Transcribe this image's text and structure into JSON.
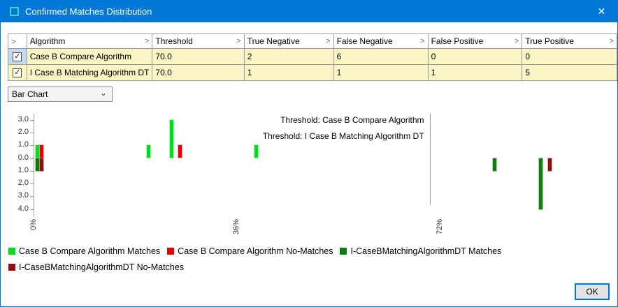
{
  "window": {
    "title": "Confirmed Matches Distribution",
    "close_glyph": "✕"
  },
  "table": {
    "header_chevron": ">",
    "headers": [
      "Algorithm",
      "Threshold",
      "True Negative",
      "False Negative",
      "False Positive",
      "True Positive"
    ],
    "rows": [
      {
        "checked": true,
        "selected": true,
        "check_glyph": "✓",
        "cells": [
          "Case B Compare Algorithm",
          "70.0",
          "2",
          "6",
          "0",
          "0"
        ]
      },
      {
        "checked": true,
        "selected": false,
        "check_glyph": "✓",
        "cells": [
          "I Case B Matching Algorithm DT",
          "70.0",
          "1",
          "1",
          "1",
          "5"
        ]
      }
    ]
  },
  "chart_type_selector": {
    "value": "Bar Chart",
    "arrow_glyph": "⌄"
  },
  "chart_data": {
    "type": "bar",
    "orientation": "vertical mirrored (algorithm 1 above axis, algorithm 2 below axis)",
    "x_unit": "score percent",
    "x_ticks": [
      {
        "pct": 0,
        "label": "0%"
      },
      {
        "pct": 36,
        "label": "36%"
      },
      {
        "pct": 72,
        "label": "72%"
      }
    ],
    "y_ticks": [
      {
        "v": 3,
        "label": "3.0"
      },
      {
        "v": 2,
        "label": "2.0"
      },
      {
        "v": 1,
        "label": "1.0"
      },
      {
        "v": 0,
        "label": "0.0"
      },
      {
        "v": -1,
        "label": "1.0"
      },
      {
        "v": -2,
        "label": "2.0"
      },
      {
        "v": -3,
        "label": "3.0"
      },
      {
        "v": -4,
        "label": "4.0"
      }
    ],
    "thresholds": [
      {
        "value": 70,
        "label": "Threshold: Case B Compare Algorithm"
      },
      {
        "value": 70,
        "label": "Threshold: I Case B Matching Algorithm DT"
      }
    ],
    "series": [
      {
        "name": "Case B Compare Algorithm Matches",
        "color": "#00dd1e",
        "bars": [
          {
            "pct": 0.4,
            "value": 1
          },
          {
            "pct": 20.1,
            "value": 1
          },
          {
            "pct": 24.2,
            "value": 3
          },
          {
            "pct": 39.3,
            "value": 1
          }
        ]
      },
      {
        "name": "Case B Compare Algorithm No-Matches",
        "color": "#ee0000",
        "bars": [
          {
            "pct": 1.2,
            "value": 1
          },
          {
            "pct": 25.7,
            "value": 1
          }
        ]
      },
      {
        "name": "I-CaseBMatchingAlgorithmDT Matches",
        "color": "#0f7c0f",
        "bars": [
          {
            "pct": 0.4,
            "value": -1
          },
          {
            "pct": 81.5,
            "value": -1
          },
          {
            "pct": 89.7,
            "value": -4
          }
        ]
      },
      {
        "name": "I-CaseBMatchingAlgorithmDT No-Matches",
        "color": "#8f0e0e",
        "bars": [
          {
            "pct": 1.2,
            "value": -1
          },
          {
            "pct": 91.3,
            "value": -1
          }
        ]
      }
    ]
  },
  "ok_button": {
    "label": "OK"
  },
  "colors": {
    "titlebar": "#0078d7",
    "row_fill": "#fbf5c6",
    "accent": "#0078d7"
  }
}
